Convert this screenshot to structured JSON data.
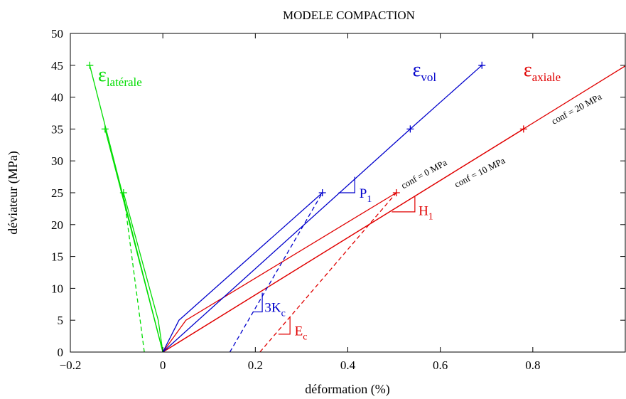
{
  "chart_data": {
    "type": "line",
    "title": "MODELE COMPACTION",
    "xlabel": "déformation (%)",
    "ylabel": "déviateur (MPa)",
    "xlim": [
      -0.2,
      1.0
    ],
    "ylim": [
      0,
      50
    ],
    "xticks": [
      -0.2,
      0,
      0.2,
      0.4,
      0.6,
      0.8
    ],
    "xtick_labels": [
      "−0.2",
      "0",
      "0.2",
      "0.4",
      "0.6",
      "0.8"
    ],
    "yticks": [
      0,
      5,
      10,
      15,
      20,
      25,
      30,
      35,
      40,
      45,
      50
    ],
    "ytick_labels": [
      "0",
      "5",
      "10",
      "15",
      "20",
      "25",
      "30",
      "35",
      "40",
      "45",
      "50"
    ],
    "grid": false,
    "colors": {
      "axial": "#e00000",
      "vol": "#0000cc",
      "laterale": "#00dd00",
      "axes": "#000000"
    },
    "series": [
      {
        "group": "axiale",
        "color": "#e00000",
        "style": "solid",
        "points": [
          [
            0,
            0
          ],
          [
            0.05,
            5
          ],
          [
            0.505,
            25
          ]
        ],
        "markers": [
          [
            0.505,
            25
          ]
        ]
      },
      {
        "group": "axiale",
        "color": "#e00000",
        "style": "solid",
        "points": [
          [
            0,
            0
          ],
          [
            0.78,
            35
          ]
        ],
        "markers": [
          [
            0.78,
            35
          ]
        ]
      },
      {
        "group": "axiale",
        "color": "#e00000",
        "style": "solid",
        "points": [
          [
            0,
            0
          ],
          [
            1.0,
            44.9
          ]
        ],
        "markers": []
      },
      {
        "group": "axiale",
        "color": "#e00000",
        "style": "dashed",
        "points": [
          [
            0.21,
            0
          ],
          [
            0.505,
            25
          ]
        ],
        "markers": []
      },
      {
        "group": "vol",
        "color": "#0000cc",
        "style": "solid",
        "points": [
          [
            0,
            0
          ],
          [
            0.035,
            5
          ],
          [
            0.345,
            25
          ]
        ],
        "markers": [
          [
            0.345,
            25
          ]
        ]
      },
      {
        "group": "vol",
        "color": "#0000cc",
        "style": "solid",
        "points": [
          [
            0,
            0
          ],
          [
            0.535,
            35
          ],
          [
            0.69,
            45
          ]
        ],
        "markers": [
          [
            0.535,
            35
          ],
          [
            0.69,
            45
          ]
        ]
      },
      {
        "group": "vol",
        "color": "#0000cc",
        "style": "dashed",
        "points": [
          [
            0.145,
            0
          ],
          [
            0.345,
            25
          ]
        ],
        "markers": []
      },
      {
        "group": "laterale",
        "color": "#00dd00",
        "style": "solid",
        "points": [
          [
            0,
            0
          ],
          [
            -0.01,
            5
          ],
          [
            -0.085,
            25
          ]
        ],
        "markers": [
          [
            -0.085,
            25
          ]
        ]
      },
      {
        "group": "laterale",
        "color": "#00dd00",
        "style": "solid",
        "points": [
          [
            0,
            0
          ],
          [
            -0.125,
            35
          ]
        ],
        "markers": [
          [
            -0.125,
            35
          ]
        ]
      },
      {
        "group": "laterale",
        "color": "#00dd00",
        "style": "solid",
        "points": [
          [
            0,
            0
          ],
          [
            -0.158,
            45
          ]
        ],
        "markers": [
          [
            -0.158,
            45
          ]
        ]
      },
      {
        "group": "laterale",
        "color": "#00dd00",
        "style": "dashed",
        "points": [
          [
            -0.04,
            0
          ],
          [
            -0.085,
            25
          ]
        ],
        "markers": []
      }
    ],
    "series_labels": [
      {
        "id": "eps-laterale",
        "base": "ε",
        "sub": "latérale",
        "color": "#00dd00",
        "x": -0.14,
        "y": 42.5
      },
      {
        "id": "eps-vol",
        "base": "ε",
        "sub": "vol",
        "color": "#0000cc",
        "x": 0.54,
        "y": 43.3
      },
      {
        "id": "eps-axiale",
        "base": "ε",
        "sub": "axiale",
        "color": "#e00000",
        "x": 0.78,
        "y": 43.3
      }
    ],
    "slope_markers": [
      {
        "id": "p1",
        "base": "P",
        "sub": "1",
        "color": "#0000cc",
        "x0": 0.38,
        "x1": 0.415,
        "y_low": 25,
        "y_high": 27.5,
        "text_x": 0.425,
        "text_y": 24.2
      },
      {
        "id": "h1",
        "base": "H",
        "sub": "1",
        "color": "#e00000",
        "x0": 0.495,
        "x1": 0.545,
        "y_low": 22,
        "y_high": 24.5,
        "text_x": 0.553,
        "text_y": 21.5
      },
      {
        "id": "3kc",
        "base": "3K",
        "sub": "c",
        "color": "#0000cc",
        "x0": 0.195,
        "x1": 0.215,
        "y_low": 6.3,
        "y_high": 9.3,
        "text_x": 0.22,
        "text_y": 6.3
      },
      {
        "id": "ec",
        "base": "E",
        "sub": "c",
        "color": "#e00000",
        "x0": 0.25,
        "x1": 0.275,
        "y_low": 2.8,
        "y_high": 5.5,
        "text_x": 0.285,
        "text_y": 2.6
      }
    ],
    "annotations": [
      {
        "id": "conf0",
        "text": "conf = 0 MPa",
        "x": 0.52,
        "y": 25.6,
        "angle": -29
      },
      {
        "id": "conf10",
        "text": "conf = 10 MPa",
        "x": 0.635,
        "y": 25.8,
        "angle": -27
      },
      {
        "id": "conf20",
        "text": "conf = 20 MPa",
        "x": 0.845,
        "y": 35.7,
        "angle": -28
      }
    ]
  }
}
